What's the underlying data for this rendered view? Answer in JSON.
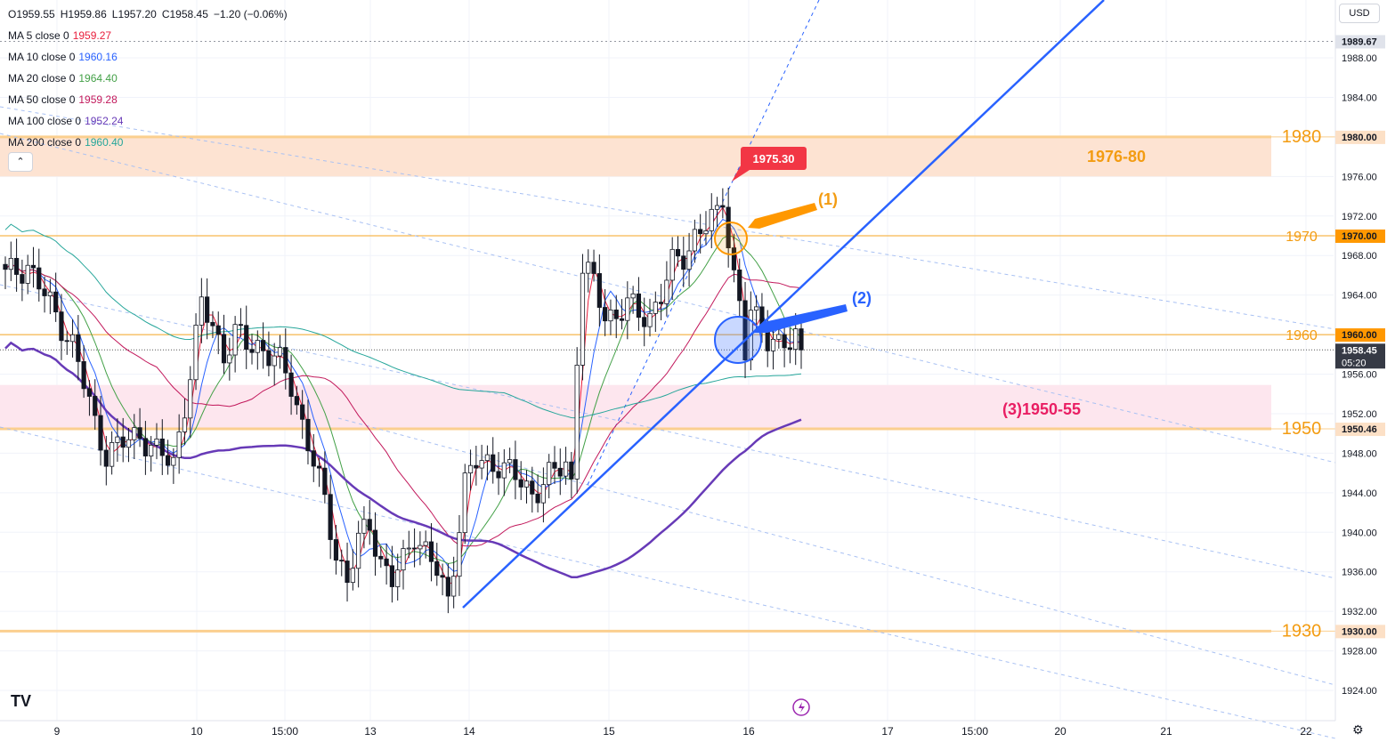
{
  "header": {
    "ohlc": [
      "O1959.55",
      "H1959.86",
      "L1957.20",
      "C1958.45",
      "−1.20 (−0.06%)"
    ],
    "currency": "USD",
    "collapse_icon": "chevron-up-icon"
  },
  "moving_averages": [
    {
      "label": "MA 5 close 0",
      "value": "1959.27",
      "color": "#e91e3c"
    },
    {
      "label": "MA 10 close 0",
      "value": "1960.16",
      "color": "#2962ff"
    },
    {
      "label": "MA 20 close 0",
      "value": "1964.40",
      "color": "#43a047"
    },
    {
      "label": "MA 50 close 0",
      "value": "1959.28",
      "color": "#c2185b"
    },
    {
      "label": "MA 100 close 0",
      "value": "1952.24",
      "color": "#673ab7"
    },
    {
      "label": "MA 200 close 0",
      "value": "1960.40",
      "color": "#26a69a"
    }
  ],
  "chart_data": {
    "type": "candlestick",
    "ylim": [
      1922,
      1993
    ],
    "y_ticks": [
      1924,
      1928,
      1932,
      1936,
      1940,
      1944,
      1948,
      1952,
      1956,
      1960,
      1964,
      1968,
      1972,
      1976,
      1980,
      1984,
      1988
    ],
    "x_ticks": [
      "9",
      "10",
      "15:00",
      "13",
      "14",
      "15",
      "16",
      "17",
      "15:00",
      "20",
      "21",
      "22"
    ],
    "price_labels": [
      {
        "value": "1989.67",
        "bg": "#e0e3eb",
        "fg": "#131722"
      },
      {
        "value": "1980.00",
        "bg": "#fce0c6",
        "fg": "#131722"
      },
      {
        "value": "1970.00",
        "bg": "#ff9800",
        "fg": "#131722"
      },
      {
        "value": "1960.00",
        "bg": "#ff9800",
        "fg": "#131722"
      },
      {
        "value": "1958.45",
        "bg": "#363a45",
        "fg": "#ffffff",
        "sub": "05:20"
      },
      {
        "value": "1950.46",
        "bg": "#fce0c6",
        "fg": "#131722"
      },
      {
        "value": "1930.00",
        "bg": "#fce0c6",
        "fg": "#131722"
      }
    ],
    "zones": [
      {
        "from": 1976,
        "to": 1980,
        "color": "#fde3d2",
        "label": "1976-80",
        "label_color": "#f39c12"
      },
      {
        "from": 1950.46,
        "to": 1954.9,
        "color": "#fde6ee",
        "label": "(3)1950-55",
        "label_color": "#e91e63"
      }
    ],
    "levels": [
      {
        "value": 1980,
        "label": "1980",
        "color": "#fbcf8f"
      },
      {
        "value": 1970,
        "label": "1970",
        "color": "#f5a623"
      },
      {
        "value": 1960,
        "label": "1960",
        "color": "#f5a623"
      },
      {
        "value": 1950.46,
        "label": "1950",
        "color": "#fbcf8f"
      },
      {
        "value": 1930,
        "label": "1930",
        "color": "#fbcf8f"
      }
    ],
    "annotations": [
      {
        "text": "1975.30",
        "kind": "high-flag",
        "color": "#f23645"
      },
      {
        "text": "(1)",
        "kind": "callout",
        "color": "#f39c12"
      },
      {
        "text": "(2)",
        "kind": "callout",
        "color": "#2962ff"
      }
    ],
    "ma_series": [
      {
        "name": "MA 5",
        "color": "#e91e3c"
      },
      {
        "name": "MA 10",
        "color": "#2962ff"
      },
      {
        "name": "MA 20",
        "color": "#43a047"
      },
      {
        "name": "MA 50",
        "color": "#c2185b"
      },
      {
        "name": "MA 100",
        "color": "#673ab7"
      },
      {
        "name": "MA 200",
        "color": "#26a69a"
      }
    ],
    "close_path": [
      [
        0,
        1966
      ],
      [
        4,
        1967
      ],
      [
        8,
        1963
      ],
      [
        12,
        1959
      ],
      [
        14,
        1955
      ],
      [
        16,
        1951
      ],
      [
        18,
        1948
      ],
      [
        21,
        1949
      ],
      [
        24,
        1950
      ],
      [
        27,
        1948
      ],
      [
        30,
        1947
      ],
      [
        33,
        1956
      ],
      [
        35,
        1963
      ],
      [
        37,
        1961
      ],
      [
        39,
        1958
      ],
      [
        41,
        1960
      ],
      [
        43,
        1959
      ],
      [
        45,
        1959
      ],
      [
        47,
        1958
      ],
      [
        49,
        1957
      ],
      [
        51,
        1955
      ],
      [
        53,
        1951
      ],
      [
        55,
        1947
      ],
      [
        57,
        1943
      ],
      [
        59,
        1938
      ],
      [
        61,
        1935
      ],
      [
        63,
        1939
      ],
      [
        65,
        1941
      ],
      [
        67,
        1937
      ],
      [
        69,
        1935
      ],
      [
        71,
        1937
      ],
      [
        73,
        1940
      ],
      [
        75,
        1938
      ],
      [
        77,
        1936
      ],
      [
        79,
        1933
      ],
      [
        80,
        1937
      ],
      [
        82,
        1945
      ],
      [
        84,
        1947
      ],
      [
        86,
        1947
      ],
      [
        88,
        1947
      ],
      [
        90,
        1946
      ],
      [
        92,
        1945
      ],
      [
        94,
        1944
      ],
      [
        96,
        1945
      ],
      [
        98,
        1946
      ],
      [
        100,
        1947
      ],
      [
        101,
        1945
      ],
      [
        102,
        1958
      ],
      [
        103,
        1967
      ],
      [
        105,
        1965
      ],
      [
        107,
        1962
      ],
      [
        109,
        1962
      ],
      [
        111,
        1963
      ],
      [
        113,
        1962
      ],
      [
        115,
        1962
      ],
      [
        117,
        1964
      ],
      [
        119,
        1967
      ],
      [
        121,
        1968
      ],
      [
        123,
        1970
      ],
      [
        125,
        1971
      ],
      [
        127,
        1972
      ],
      [
        128,
        1974
      ],
      [
        129,
        1970
      ],
      [
        130,
        1966
      ],
      [
        131,
        1963
      ],
      [
        132,
        1958
      ],
      [
        133,
        1962
      ],
      [
        135,
        1961
      ],
      [
        136,
        1960
      ],
      [
        138,
        1959
      ],
      [
        140,
        1958.7
      ],
      [
        141,
        1959.5
      ],
      [
        142,
        1958.45
      ]
    ]
  }
}
